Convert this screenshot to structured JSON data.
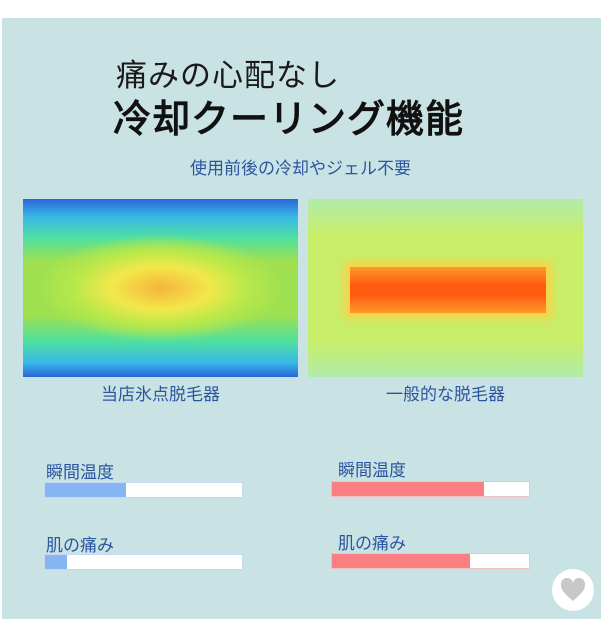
{
  "title_line1": "痛みの心配なし",
  "title_line2": "冷却クーリング機能",
  "subtitle": "使用前後の冷却やジェル不要",
  "left": {
    "caption": "当店氷点脱毛器",
    "temp_label": "瞬間温度",
    "temp_percent": 41,
    "pain_label": "肌の痛み",
    "pain_percent": 11,
    "color": "#86b6f2"
  },
  "right": {
    "caption": "一般的な脱毛器",
    "temp_label": "瞬間温度",
    "temp_percent": 77,
    "pain_label": "肌の痛み",
    "pain_percent": 70,
    "color": "#fa7f82"
  },
  "heart_icon": "heart-icon"
}
